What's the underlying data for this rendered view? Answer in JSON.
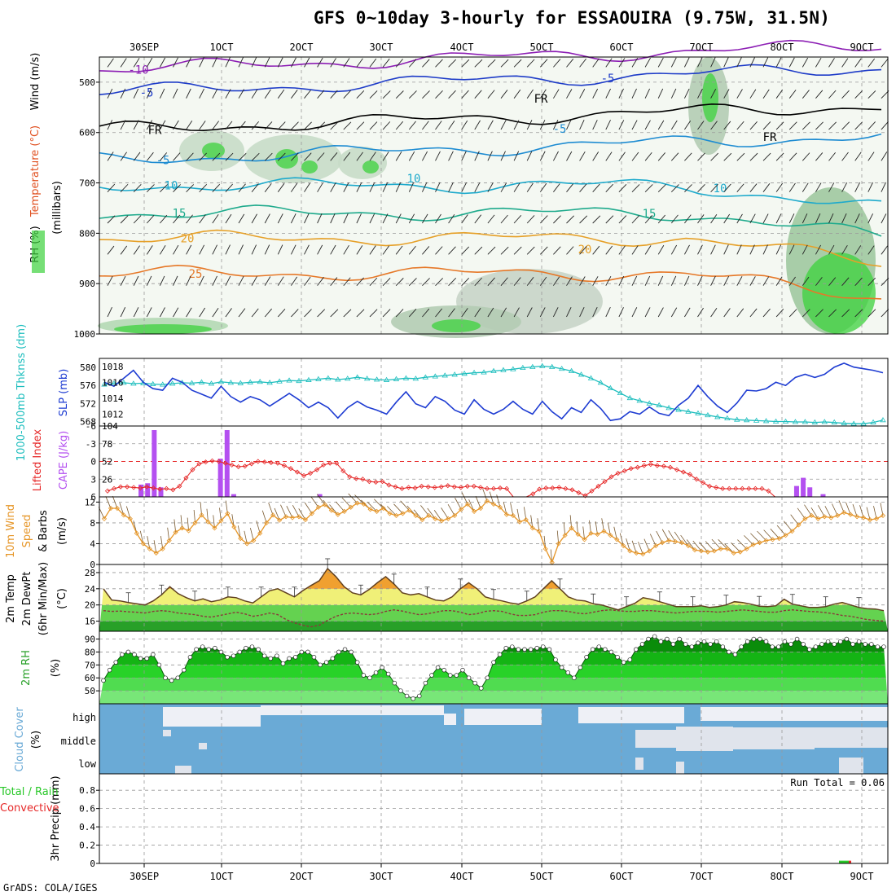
{
  "title": "GFS 0~10day 3-hourly for ESSAOUIRA (9.75W, 31.5N)",
  "credit": "GrADS: COLA/IGES",
  "x_ticks": [
    "30SEP",
    "1OCT",
    "2OCT",
    "3OCT",
    "4OCT",
    "5OCT",
    "6OCT",
    "7OCT",
    "8OCT",
    "9OCT"
  ],
  "colors": {
    "rh_green": "#3cd23c",
    "slp": "#1e3cd2",
    "thickness": "#1ebebe",
    "lifted": "#e62828",
    "cape": "#b450f0",
    "wind": "#e69628",
    "cloud": "#6aaad6",
    "precip_total": "#28c828",
    "precip_conv": "#e62828"
  },
  "run_total": "Run Total = 0.06",
  "chart_data": [
    {
      "id": "upper-air",
      "type": "contour",
      "ylabel_parts": [
        "RH (%)",
        "Temperature (°C)",
        "Wind (m/s)"
      ],
      "ylabel_units": "(millibars)",
      "yticks": [
        "500",
        "600",
        "700",
        "800",
        "900",
        "1000"
      ],
      "ylim": [
        1000,
        450
      ],
      "isotherms": [
        {
          "label": "-10",
          "level_mb": 475,
          "color": "#8c1eb4"
        },
        {
          "label": "-5",
          "level_mb": 520,
          "color": "#1e3cc8"
        },
        {
          "label": "FR",
          "level_mb": 595,
          "color": "#000000"
        },
        {
          "label": "-5",
          "level_mb": 655,
          "color": "#1e8cd2"
        },
        {
          "label": "10",
          "level_mb": 705,
          "color": "#1eaacc"
        },
        {
          "label": "15",
          "level_mb": 760,
          "color": "#1eaa8c"
        },
        {
          "label": "20",
          "level_mb": 810,
          "color": "#e6a028"
        },
        {
          "label": "25",
          "level_mb": 880,
          "color": "#e67828"
        }
      ],
      "extra_labels": [
        "-5",
        "10",
        "15",
        "20",
        "10",
        "FR",
        "-5",
        "FR"
      ]
    },
    {
      "id": "slp-thickness",
      "type": "line",
      "ylabel_left": "1000-500mb Thknss (dm)",
      "ylabel_right": "SLP (mb)",
      "yticks_left": [
        "568",
        "572",
        "576",
        "580"
      ],
      "yticks_right": [
        "1012",
        "1014",
        "1016",
        "1018"
      ],
      "ylim_left": [
        567,
        582
      ],
      "ylim_right": [
        1010.5,
        1019
      ],
      "series": [
        {
          "key": "slp",
          "values": [
            1016.0,
            1015.5,
            1016.5,
            1017.5,
            1016.0,
            1015.2,
            1015.0,
            1016.5,
            1016.0,
            1015.0,
            1014.5,
            1014.0,
            1015.5,
            1014.2,
            1013.5,
            1014.2,
            1013.8,
            1013.0,
            1013.8,
            1014.6,
            1013.8,
            1012.8,
            1013.5,
            1012.8,
            1011.5,
            1012.8,
            1013.6,
            1012.9,
            1012.5,
            1012.0,
            1013.5,
            1014.8,
            1013.3,
            1012.8,
            1014.2,
            1013.6,
            1012.5,
            1012.0,
            1013.8,
            1012.6,
            1012.0,
            1012.6,
            1013.6,
            1012.6,
            1012.0,
            1013.6,
            1012.3,
            1011.4,
            1012.8,
            1012.2,
            1013.8,
            1012.7,
            1011.2,
            1011.4,
            1012.3,
            1012.0,
            1012.9,
            1012.1,
            1011.8,
            1013.1,
            1014.0,
            1015.6,
            1014.2,
            1013.0,
            1012.2,
            1013.4,
            1015.0,
            1014.9,
            1015.2,
            1016.0,
            1015.6,
            1016.6,
            1017.0,
            1016.6,
            1017.0,
            1017.9,
            1018.4,
            1017.9,
            1017.7,
            1017.5,
            1017.2
          ]
        },
        {
          "key": "thickness",
          "values": [
            576.2,
            576.4,
            576.6,
            576.4,
            576.5,
            576.3,
            576.2,
            576.4,
            576.6,
            576.5,
            576.7,
            576.4,
            576.8,
            576.6,
            576.5,
            576.7,
            576.8,
            576.6,
            576.9,
            577.1,
            577.0,
            577.2,
            577.4,
            577.6,
            577.3,
            577.5,
            577.8,
            577.5,
            577.3,
            577.2,
            577.4,
            577.6,
            577.5,
            577.8,
            578.0,
            578.2,
            578.4,
            578.6,
            578.8,
            578.9,
            579.2,
            579.4,
            579.6,
            579.9,
            580.1,
            580.3,
            580.1,
            579.7,
            579.2,
            578.4,
            577.6,
            576.6,
            575.4,
            574.3,
            573.2,
            572.6,
            572.0,
            571.6,
            571.0,
            570.6,
            570.2,
            569.8,
            569.4,
            569.0,
            568.7,
            568.4,
            568.3,
            568.2,
            568.1,
            568.0,
            568.0,
            567.9,
            567.9,
            567.8,
            567.9,
            567.8,
            567.6,
            567.5,
            567.5,
            567.8,
            568.3
          ]
        }
      ]
    },
    {
      "id": "cape-li",
      "type": "bar-line",
      "ylabel_left": "Lifted Index",
      "ylabel_right": "CAPE (J/kg)",
      "yticks_left": [
        "-6",
        "-3",
        "0",
        "3",
        "6"
      ],
      "yticks_right": [
        "26",
        "52",
        "78",
        "104"
      ],
      "ylim_left": [
        6,
        -6
      ],
      "ylim_right": [
        0,
        104
      ],
      "cape_bars": [
        {
          "i": 14,
          "v": 18
        },
        {
          "i": 15,
          "v": 20
        },
        {
          "i": 16,
          "v": 98
        },
        {
          "i": 17,
          "v": 14
        },
        {
          "i": 26,
          "v": 56
        },
        {
          "i": 27,
          "v": 98
        },
        {
          "i": 28,
          "v": 4
        },
        {
          "i": 41,
          "v": 4
        },
        {
          "i": 116,
          "v": 0
        },
        {
          "i": 113,
          "v": 16
        },
        {
          "i": 114,
          "v": 28
        },
        {
          "i": 115,
          "v": 14
        },
        {
          "i": 117,
          "v": 4
        }
      ],
      "lifted_index": [
        5.0,
        4.6,
        4.3,
        4.3,
        4.4,
        4.5,
        4.3,
        4.5,
        4.7,
        4.6,
        4.8,
        4.2,
        2.8,
        1.4,
        0.4,
        0.1,
        -0.1,
        0.0,
        0.3,
        0.6,
        0.9,
        0.8,
        0.4,
        0.0,
        0.1,
        0.2,
        0.3,
        0.7,
        1.2,
        1.8,
        2.4,
        2.0,
        1.4,
        0.6,
        0.3,
        0.3,
        1.6,
        2.6,
        2.9,
        3.0,
        3.4,
        3.5,
        3.4,
        4.0,
        4.3,
        4.6,
        4.4,
        4.5,
        4.2,
        4.3,
        4.4,
        4.3,
        4.1,
        4.3,
        4.4,
        4.2,
        4.2,
        4.4,
        4.6,
        4.6,
        4.5,
        4.6,
        6.0,
        6.0,
        6.0,
        5.5,
        4.7,
        4.5,
        4.5,
        4.4,
        4.6,
        4.8,
        5.3,
        5.8,
        5.0,
        4.2,
        3.4,
        2.6,
        2.0,
        1.6,
        1.2,
        1.0,
        0.7,
        0.5,
        0.7,
        0.8,
        1.0,
        1.4,
        1.8,
        2.2,
        3.0,
        3.6,
        4.2,
        4.4,
        4.6,
        4.6,
        4.6,
        4.6,
        4.6,
        4.6,
        4.6,
        5.0,
        6.0,
        6.0,
        6.0,
        6.0,
        6.0,
        6.0,
        6.0,
        6.0,
        6.0,
        6.0,
        6.0,
        6.0,
        6.0,
        6.0,
        6.0,
        6.0,
        6.0
      ]
    },
    {
      "id": "wind10m",
      "type": "line",
      "ylabel": "10m Wind Speed & Barbs",
      "yunits": "(m/s)",
      "yticks": [
        "0",
        "4",
        "8",
        "12"
      ],
      "ylim": [
        0,
        13
      ],
      "values": [
        8.8,
        10.8,
        10.8,
        9.5,
        8.8,
        6.0,
        4.0,
        3.0,
        2.2,
        3.0,
        4.6,
        6.2,
        7.0,
        6.5,
        8.0,
        9.5,
        8.2,
        7.0,
        8.4,
        9.8,
        7.2,
        5.0,
        4.0,
        4.6,
        6.0,
        8.0,
        9.5,
        8.5,
        9.2,
        9.0,
        9.2,
        8.6,
        9.8,
        11.0,
        11.5,
        10.4,
        9.6,
        10.2,
        11.0,
        11.8,
        11.6,
        10.6,
        10.2,
        10.8,
        9.8,
        9.4,
        9.8,
        10.4,
        9.4,
        8.6,
        9.4,
        8.8,
        8.4,
        8.8,
        9.4,
        10.6,
        11.6,
        10.2,
        10.8,
        12.2,
        11.6,
        11.0,
        9.6,
        9.4,
        8.2,
        8.6,
        7.0,
        6.4,
        3.0,
        0.4,
        4.0,
        5.6,
        7.0,
        5.8,
        4.8,
        6.0,
        5.8,
        6.4,
        5.6,
        4.8,
        3.6,
        2.6,
        2.2,
        2.0,
        2.6,
        3.6,
        4.2,
        4.6,
        4.4,
        4.2,
        3.6,
        2.8,
        2.6,
        2.4,
        2.6,
        3.0,
        3.0,
        2.2,
        2.4,
        3.0,
        3.8,
        4.2,
        4.6,
        4.8,
        5.0,
        5.6,
        6.4,
        7.6,
        8.8,
        9.4,
        8.8,
        9.2,
        9.0,
        9.4,
        10.0,
        9.6,
        9.2,
        9.0,
        8.6,
        8.8,
        9.4
      ]
    },
    {
      "id": "temp2m",
      "type": "area",
      "ylabel": "2m Temp 2m DewPt (6hr Min/Max)",
      "yunits": "(°C)",
      "yticks": [
        "16",
        "20",
        "24",
        "28"
      ],
      "ylim": [
        13.5,
        30
      ],
      "temp": [
        24.0,
        21.2,
        21.0,
        20.6,
        20.3,
        20.0,
        21.0,
        22.5,
        24.5,
        22.8,
        21.8,
        21.0,
        21.5,
        20.8,
        21.2,
        22.0,
        21.8,
        21.0,
        20.5,
        22.0,
        23.5,
        24.0,
        23.0,
        22.0,
        23.5,
        24.8,
        26.0,
        29.0,
        27.0,
        24.5,
        23.0,
        22.5,
        23.8,
        25.5,
        27.0,
        25.2,
        23.0,
        22.5,
        22.8,
        22.0,
        21.2,
        21.0,
        22.0,
        24.0,
        25.5,
        24.0,
        22.0,
        21.4,
        21.0,
        20.5,
        20.2,
        21.0,
        22.0,
        24.0,
        26.0,
        24.0,
        22.0,
        21.2,
        21.0,
        20.3,
        20.0,
        19.4,
        18.8,
        19.6,
        20.4,
        21.8,
        21.4,
        20.8,
        20.2,
        19.6,
        19.6,
        19.6,
        19.8,
        19.4,
        19.6,
        20.0,
        20.8,
        20.6,
        20.2,
        19.7,
        19.6,
        19.8,
        21.4,
        20.2,
        19.8,
        19.4,
        19.4,
        19.6,
        20.2,
        20.6,
        20.0,
        19.4,
        19.1,
        19.0,
        18.6
      ],
      "dewpt": [
        18.6,
        18.4,
        18.5,
        18.3,
        18.2,
        18.0,
        18.4,
        18.6,
        18.4,
        18.0,
        17.8,
        17.6,
        17.2,
        17.0,
        17.4,
        17.8,
        18.2,
        17.8,
        17.2,
        17.5,
        18.0,
        17.6,
        16.4,
        15.6,
        15.0,
        14.6,
        15.0,
        16.2,
        17.2,
        17.8,
        18.0,
        17.8,
        17.6,
        17.8,
        18.4,
        18.8,
        18.5,
        18.0,
        17.6,
        17.8,
        18.2,
        18.6,
        18.6,
        18.2,
        17.6,
        17.8,
        18.4,
        18.6,
        18.4,
        17.8,
        17.4,
        17.4,
        17.6,
        18.2,
        18.6,
        18.6,
        18.4,
        18.0,
        17.8,
        18.2,
        18.6,
        18.8,
        18.6,
        18.4,
        18.4,
        18.6,
        18.6,
        18.4,
        18.2,
        18.0,
        18.2,
        18.4,
        18.4,
        18.4,
        18.2,
        18.4,
        18.6,
        18.8,
        18.6,
        18.4,
        18.2,
        18.2,
        18.6,
        18.8,
        18.6,
        18.4,
        18.3,
        18.1,
        17.8,
        17.4,
        17.2,
        16.8,
        16.4,
        16.2,
        16.0
      ]
    },
    {
      "id": "rh2m",
      "type": "area",
      "ylabel": "2m RH",
      "yunits": "(%)",
      "yticks": [
        "50",
        "60",
        "70",
        "80",
        "90"
      ],
      "ylim": [
        40,
        96
      ],
      "values": [
        58,
        66,
        72,
        78,
        80,
        78,
        75,
        75,
        78,
        70,
        60,
        58,
        60,
        66,
        76,
        82,
        84,
        82,
        83,
        80,
        76,
        77,
        80,
        83,
        84,
        82,
        77,
        75,
        77,
        71,
        75,
        76,
        80,
        80,
        76,
        70,
        72,
        75,
        80,
        82,
        80,
        72,
        62,
        60,
        64,
        68,
        63,
        56,
        50,
        46,
        44,
        46,
        56,
        62,
        68,
        66,
        62,
        62,
        66,
        60,
        56,
        52,
        60,
        72,
        78,
        83,
        84,
        82,
        82,
        82,
        83,
        84,
        82,
        74,
        68,
        64,
        60,
        68,
        76,
        82,
        84,
        82,
        80,
        76,
        72,
        74,
        82,
        86,
        90,
        92,
        88,
        90,
        86,
        90,
        86,
        84,
        87,
        88,
        86,
        88,
        84,
        80,
        78,
        84,
        88,
        90,
        90,
        88,
        84,
        84,
        88,
        86,
        90,
        86,
        82,
        84,
        86,
        88,
        86,
        88,
        90,
        86,
        88,
        86,
        86,
        84,
        84
      ],
      "bands": [
        50,
        60,
        70,
        80
      ]
    },
    {
      "id": "cloud",
      "type": "heatmap",
      "ylabel": "Cloud Cover",
      "yunits": "(%)",
      "row_labels": [
        "high",
        "middle",
        "low"
      ]
    },
    {
      "id": "precip",
      "type": "bar",
      "ylabel": "3hr Precip (mm)",
      "ylabel_left": "Total / Rain",
      "ylabel_left2": "Convective",
      "yticks": [
        "0",
        "0.2",
        "0.4",
        "0.6",
        "0.8"
      ],
      "ylim": [
        0,
        0.98
      ],
      "bars": [
        {
          "i": 113,
          "total": 0.03,
          "conv": 0.01
        },
        {
          "i": 114,
          "total": 0.03,
          "conv": 0.01
        }
      ]
    }
  ]
}
